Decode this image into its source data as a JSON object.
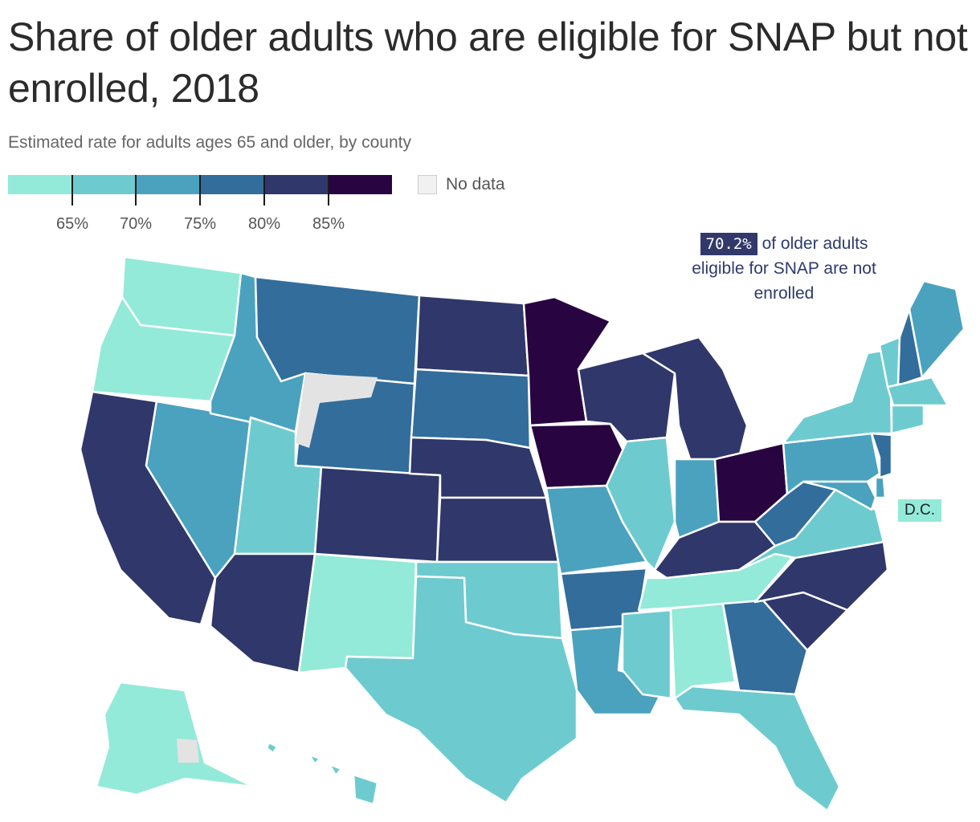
{
  "title": "Share of older adults who are eligible for SNAP but not enrolled, 2018",
  "subtitle": "Estimated rate for adults ages 65 and older, by county",
  "legend": {
    "colors": [
      "#93ead8",
      "#6dcbcf",
      "#4aa2bf",
      "#326d9c",
      "#30376a",
      "#280541"
    ],
    "ticks": [
      "65%",
      "70%",
      "75%",
      "80%",
      "85%"
    ],
    "nodata_label": "No data",
    "nodata_color": "#f1f1f1"
  },
  "callout": {
    "value": "70.2%",
    "text": "of older adults eligible for SNAP are not enrolled"
  },
  "dc_label": "D.C.",
  "state_fills": {
    "WA": 0,
    "OR": 0,
    "CA": 4,
    "NV": 2,
    "ID": 2,
    "MT": 3,
    "WY": 3,
    "UT": 1,
    "AZ": 4,
    "NM": 0,
    "CO": 4,
    "ND": 4,
    "SD": 3,
    "NE": 4,
    "KS": 4,
    "OK": 1,
    "TX": 1,
    "MN": 5,
    "IA": 5,
    "MO": 2,
    "AR": 3,
    "LA": 2,
    "WI": 4,
    "IL": 1,
    "MI": 4,
    "IN": 2,
    "OH": 5,
    "KY": 4,
    "TN": 0,
    "MS": 1,
    "AL": 0,
    "GA": 3,
    "FL": 1,
    "SC": 4,
    "NC": 4,
    "VA": 1,
    "WV": 3,
    "PA": 2,
    "NY": 1,
    "VT": 1,
    "NH": 3,
    "ME": 2,
    "MA": 1,
    "CT": 1,
    "NJ": 3,
    "DE": 2,
    "MD": 2,
    "AK": 0,
    "HI": 1
  }
}
